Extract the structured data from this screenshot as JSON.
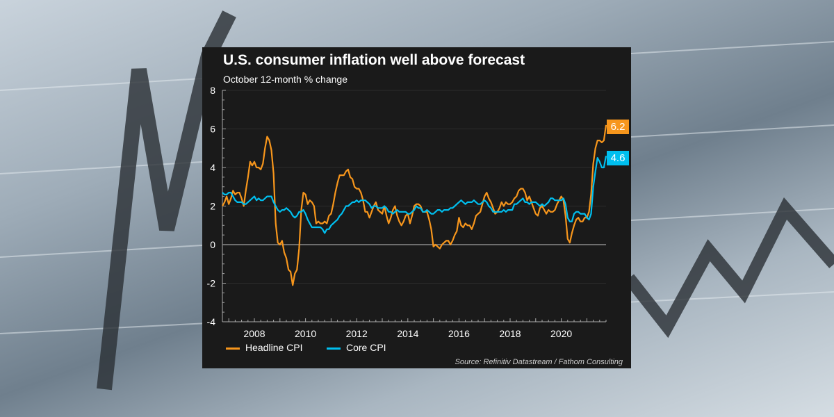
{
  "chart_data": {
    "type": "line",
    "title": "U.S. consumer inflation well above forecast",
    "subtitle": "October 12-month % change",
    "source": "Source: Refinitiv Datastream / Fathom Consulting",
    "x_start": "2006-10",
    "x_end": "2021-10",
    "x_frequency": "monthly",
    "x_tick_labels": [
      "2008",
      "2010",
      "2012",
      "2014",
      "2016",
      "2018",
      "2020"
    ],
    "ylim": [
      -4,
      8
    ],
    "y_tick_labels": [
      "8",
      "6",
      "4",
      "2",
      "0",
      "-2",
      "-4"
    ],
    "grid": true,
    "legend_position": "bottom-left",
    "series": [
      {
        "name": "Headline CPI",
        "color": "#f7961c",
        "end_label": "6.2",
        "values": [
          2.0,
          2.2,
          2.5,
          2.1,
          2.4,
          2.8,
          2.6,
          2.7,
          2.7,
          2.4,
          2.0,
          2.8,
          3.5,
          4.3,
          4.1,
          4.3,
          4.0,
          4.0,
          3.9,
          4.2,
          5.0,
          5.6,
          5.4,
          4.9,
          3.7,
          1.1,
          0.1,
          0.0,
          0.2,
          -0.4,
          -0.7,
          -1.3,
          -1.4,
          -2.1,
          -1.5,
          -1.3,
          -0.2,
          1.8,
          2.7,
          2.6,
          2.1,
          2.3,
          2.2,
          2.0,
          1.1,
          1.2,
          1.1,
          1.1,
          1.2,
          1.1,
          1.5,
          1.6,
          2.1,
          2.7,
          3.2,
          3.6,
          3.6,
          3.6,
          3.8,
          3.9,
          3.5,
          3.4,
          3.0,
          2.9,
          2.9,
          2.7,
          2.3,
          1.7,
          1.7,
          1.4,
          1.7,
          2.0,
          2.2,
          1.8,
          1.7,
          1.6,
          2.0,
          1.5,
          1.1,
          1.4,
          1.8,
          2.0,
          1.5,
          1.2,
          1.0,
          1.2,
          1.5,
          1.6,
          1.1,
          1.5,
          2.0,
          2.1,
          2.1,
          2.0,
          1.7,
          1.7,
          1.7,
          1.3,
          0.8,
          -0.1,
          0.0,
          -0.1,
          -0.2,
          0.0,
          0.1,
          0.2,
          0.2,
          0.0,
          0.2,
          0.5,
          0.7,
          1.4,
          1.0,
          0.9,
          1.1,
          1.0,
          1.0,
          0.8,
          1.1,
          1.5,
          1.6,
          1.7,
          2.1,
          2.5,
          2.7,
          2.4,
          2.2,
          1.9,
          1.6,
          1.7,
          1.9,
          2.2,
          2.0,
          2.2,
          2.1,
          2.1,
          2.2,
          2.4,
          2.5,
          2.8,
          2.9,
          2.9,
          2.7,
          2.3,
          2.5,
          2.2,
          1.9,
          1.6,
          1.5,
          1.9,
          2.0,
          1.8,
          1.6,
          1.8,
          1.7,
          1.7,
          1.8,
          2.1,
          2.3,
          2.5,
          2.3,
          1.5,
          0.3,
          0.1,
          0.6,
          1.0,
          1.3,
          1.4,
          1.2,
          1.2,
          1.4,
          1.4,
          1.7,
          2.6,
          4.2,
          5.0,
          5.4,
          5.4,
          5.3,
          5.4,
          6.2
        ]
      },
      {
        "name": "Core CPI",
        "color": "#00bfef",
        "end_label": "4.6",
        "values": [
          2.7,
          2.6,
          2.6,
          2.7,
          2.7,
          2.5,
          2.3,
          2.2,
          2.2,
          2.2,
          2.1,
          2.1,
          2.2,
          2.3,
          2.4,
          2.5,
          2.3,
          2.4,
          2.3,
          2.3,
          2.4,
          2.5,
          2.5,
          2.5,
          2.2,
          2.0,
          1.8,
          1.7,
          1.8,
          1.8,
          1.9,
          1.8,
          1.7,
          1.5,
          1.4,
          1.5,
          1.7,
          1.7,
          1.8,
          1.6,
          1.3,
          1.1,
          0.9,
          0.9,
          0.9,
          0.9,
          0.9,
          0.8,
          0.6,
          0.8,
          0.8,
          1.0,
          1.1,
          1.2,
          1.3,
          1.5,
          1.6,
          1.8,
          2.0,
          2.0,
          2.1,
          2.2,
          2.2,
          2.3,
          2.2,
          2.3,
          2.3,
          2.3,
          2.2,
          2.1,
          1.9,
          2.0,
          2.0,
          1.9,
          1.9,
          1.9,
          2.0,
          1.9,
          1.7,
          1.7,
          1.6,
          1.7,
          1.8,
          1.7,
          1.7,
          1.7,
          1.7,
          1.6,
          1.6,
          1.7,
          1.8,
          2.0,
          1.9,
          1.9,
          1.7,
          1.7,
          1.8,
          1.7,
          1.6,
          1.6,
          1.7,
          1.8,
          1.8,
          1.7,
          1.8,
          1.8,
          1.8,
          1.9,
          1.9,
          2.0,
          2.1,
          2.2,
          2.3,
          2.2,
          2.1,
          2.2,
          2.2,
          2.2,
          2.3,
          2.2,
          2.1,
          2.1,
          2.2,
          2.3,
          2.2,
          2.0,
          1.9,
          1.7,
          1.7,
          1.7,
          1.7,
          1.7,
          1.8,
          1.7,
          1.8,
          1.8,
          1.8,
          2.1,
          2.1,
          2.2,
          2.3,
          2.4,
          2.2,
          2.2,
          2.1,
          2.2,
          2.2,
          2.2,
          2.1,
          2.0,
          2.1,
          2.0,
          2.1,
          2.2,
          2.4,
          2.4,
          2.3,
          2.3,
          2.3,
          2.3,
          2.4,
          2.1,
          1.4,
          1.2,
          1.2,
          1.6,
          1.7,
          1.7,
          1.6,
          1.6,
          1.6,
          1.4,
          1.3,
          1.6,
          3.0,
          3.8,
          4.5,
          4.3,
          4.0,
          4.0,
          4.6
        ]
      }
    ]
  }
}
